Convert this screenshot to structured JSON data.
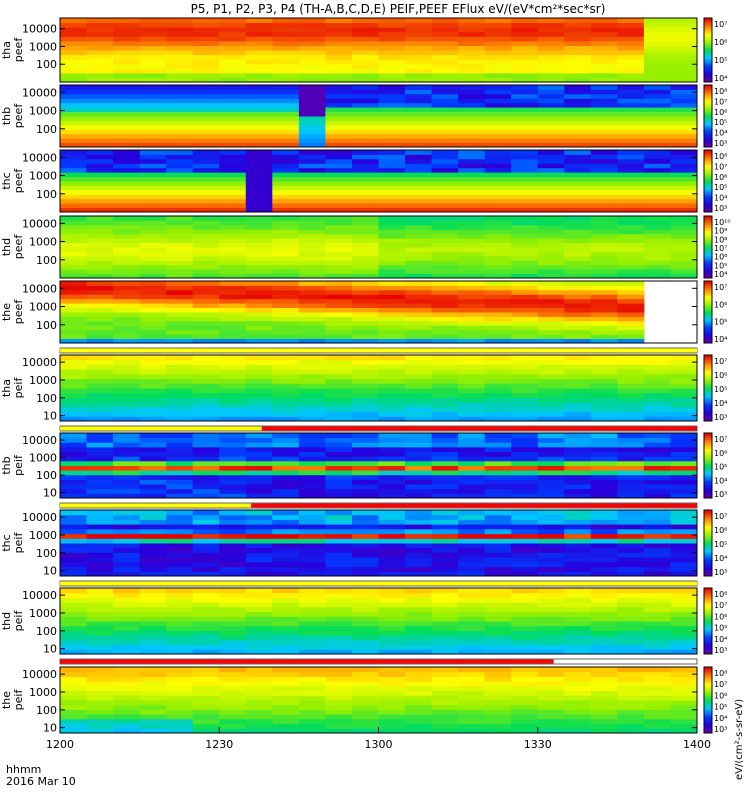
{
  "chart_data": {
    "type": "heatmap",
    "title": "P5, P1, P2, P3, P4 (TH-A,B,C,D,E) PEIF,PEEF EFlux eV/(eV*cm²*sec*sr)",
    "time_axis": {
      "label_top": "hhmm",
      "label_bottom": "2016 Mar 10",
      "ticks": [
        "1200",
        "1230",
        "1300",
        "1330",
        "1400"
      ],
      "range_minutes": [
        0,
        120
      ]
    },
    "colorbar_label": "eV/(cm²-s-sr-eV)",
    "panels": [
      {
        "id": "tha_peef",
        "ylabel": [
          "tha",
          "peef"
        ],
        "yticks": [
          "10000",
          "1000",
          "100"
        ],
        "ylog": [
          1,
          4.6
        ],
        "cticks": [
          "10⁷",
          "10⁶",
          "10⁵",
          "10⁴"
        ],
        "clog": [
          3,
          8
        ],
        "pattern": "tha_e"
      },
      {
        "id": "thb_peef",
        "ylabel": [
          "thb",
          "peef"
        ],
        "yticks": [
          "10000",
          "1000",
          "100"
        ],
        "ylog": [
          1,
          4.4
        ],
        "cticks": [
          "10⁸",
          "10⁷",
          "10⁶",
          "10⁵",
          "10⁴",
          "10³"
        ],
        "clog": [
          2.5,
          8.5
        ],
        "pattern": "thb_e"
      },
      {
        "id": "thc_peef",
        "ylabel": [
          "thc",
          "peef"
        ],
        "yticks": [
          "10000",
          "1000",
          "100"
        ],
        "ylog": [
          1,
          4.4
        ],
        "cticks": [
          "10⁸",
          "10⁷",
          "10⁶",
          "10⁵",
          "10⁴",
          "10³"
        ],
        "clog": [
          2.5,
          8.5
        ],
        "pattern": "thc_e"
      },
      {
        "id": "thd_peef",
        "ylabel": [
          "thd",
          "peef"
        ],
        "yticks": [
          "10000",
          "1000",
          "100"
        ],
        "ylog": [
          1,
          4.4
        ],
        "cticks": [
          "10¹⁰",
          "10⁹",
          "10⁸",
          "10⁷",
          "10⁶",
          "10⁵",
          "10⁴"
        ],
        "clog": [
          3.5,
          10.5
        ],
        "pattern": "thd_e"
      },
      {
        "id": "the_peef",
        "ylabel": [
          "the",
          "peef"
        ],
        "yticks": [
          "10000",
          "1000",
          "100"
        ],
        "ylog": [
          1,
          4.4
        ],
        "cticks": [
          "10⁷",
          "10⁶",
          "10⁵",
          "10⁴"
        ],
        "clog": [
          3.5,
          7.5
        ],
        "pattern": "the_e"
      },
      {
        "id": "tha_peif",
        "ylabel": [
          "tha",
          "peif"
        ],
        "yticks": [
          "10000",
          "1000",
          "100",
          "10"
        ],
        "ylog": [
          0.7,
          4.4
        ],
        "cticks": [
          "10⁷",
          "10⁶",
          "10⁵",
          "10⁴",
          "10³"
        ],
        "clog": [
          2.5,
          7.5
        ],
        "pattern": "i_a"
      },
      {
        "id": "thb_peif",
        "ylabel": [
          "thb",
          "peif"
        ],
        "yticks": [
          "10000",
          "1000",
          "100",
          "10"
        ],
        "ylog": [
          0.7,
          4.4
        ],
        "cticks": [
          "10⁷",
          "10⁶",
          "10⁵",
          "10⁴",
          "10³"
        ],
        "clog": [
          2.5,
          7.5
        ],
        "pattern": "i_b"
      },
      {
        "id": "thc_peif",
        "ylabel": [
          "thc",
          "peif"
        ],
        "yticks": [
          "10000",
          "1000",
          "100",
          "10"
        ],
        "ylog": [
          0.7,
          4.4
        ],
        "cticks": [
          "10⁷",
          "10⁶",
          "10⁵",
          "10⁴",
          "10³"
        ],
        "clog": [
          2.5,
          7.5
        ],
        "pattern": "i_c"
      },
      {
        "id": "thd_peif",
        "ylabel": [
          "thd",
          "peif"
        ],
        "yticks": [
          "10000",
          "1000",
          "100",
          "10"
        ],
        "ylog": [
          0.7,
          4.4
        ],
        "cticks": [
          "10⁸",
          "10⁷",
          "10⁶",
          "10⁵",
          "10⁴",
          "10³"
        ],
        "clog": [
          2.5,
          8.5
        ],
        "pattern": "i_d"
      },
      {
        "id": "the_peif",
        "ylabel": [
          "the",
          "peif"
        ],
        "yticks": [
          "10000",
          "1000",
          "100",
          "10"
        ],
        "ylog": [
          0.7,
          4.4
        ],
        "cticks": [
          "10⁸",
          "10⁷",
          "10⁶",
          "10⁵",
          "10⁴",
          "10³"
        ],
        "clog": [
          2.5,
          8.5
        ],
        "pattern": "i_e"
      }
    ],
    "status_bars": [
      {
        "after_panel": 5,
        "segments": [
          {
            "from": 0,
            "to": 120,
            "color": "#ffff00"
          }
        ]
      },
      {
        "after_panel": 6,
        "segments": [
          {
            "from": 0,
            "to": 38,
            "color": "#ffff00"
          },
          {
            "from": 38,
            "to": 120,
            "color": "#ff0000"
          }
        ]
      },
      {
        "after_panel": 7,
        "segments": [
          {
            "from": 0,
            "to": 36,
            "color": "#ffff00"
          },
          {
            "from": 36,
            "to": 120,
            "color": "#ff0000"
          }
        ]
      },
      {
        "after_panel": 8,
        "segments": [
          {
            "from": 0,
            "to": 120,
            "color": "#ffff00"
          }
        ]
      },
      {
        "after_panel": 9,
        "segments": [
          {
            "from": 0,
            "to": 93,
            "color": "#ff0000"
          }
        ]
      }
    ],
    "grid": false,
    "colormap": "rainbow (purple-blue-green-yellow-red)"
  }
}
